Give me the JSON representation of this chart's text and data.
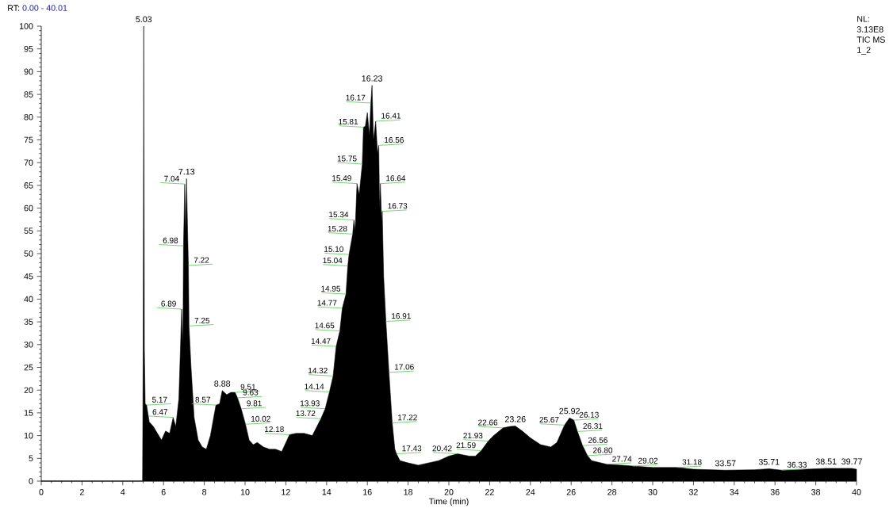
{
  "chart_data": {
    "type": "area",
    "title": "RT:",
    "subtitle": "0.00 - 40.01",
    "xlabel": "Time (min)",
    "color": "#000000",
    "xlim": [
      0,
      40
    ],
    "ylim": [
      0,
      100
    ],
    "xticks": [
      0,
      2,
      4,
      6,
      8,
      10,
      12,
      14,
      16,
      18,
      20,
      22,
      24,
      26,
      28,
      30,
      32,
      34,
      36,
      38,
      40
    ],
    "yticks": [
      0,
      5,
      10,
      15,
      20,
      25,
      30,
      35,
      40,
      45,
      50,
      55,
      60,
      65,
      70,
      75,
      80,
      85,
      90,
      95,
      100
    ],
    "x": [
      0,
      4.97,
      5.0,
      5.03,
      5.06,
      5.1,
      5.17,
      5.3,
      5.5,
      5.7,
      5.9,
      6.1,
      6.3,
      6.47,
      6.6,
      6.75,
      6.89,
      6.95,
      6.98,
      7.04,
      7.08,
      7.13,
      7.18,
      7.22,
      7.25,
      7.35,
      7.5,
      7.7,
      7.9,
      8.1,
      8.3,
      8.57,
      8.75,
      8.88,
      9.1,
      9.3,
      9.51,
      9.63,
      9.81,
      10.02,
      10.2,
      10.4,
      10.6,
      10.9,
      11.2,
      11.5,
      11.8,
      12.18,
      12.5,
      12.9,
      13.3,
      13.72,
      13.93,
      14.14,
      14.32,
      14.47,
      14.65,
      14.77,
      14.95,
      15.04,
      15.1,
      15.28,
      15.34,
      15.4,
      15.49,
      15.6,
      15.75,
      15.81,
      15.9,
      16.0,
      16.1,
      16.17,
      16.23,
      16.3,
      16.41,
      16.5,
      16.56,
      16.6,
      16.64,
      16.7,
      16.73,
      16.8,
      16.91,
      17.06,
      17.22,
      17.35,
      17.43,
      17.6,
      18,
      18.5,
      19,
      19.5,
      20,
      20.42,
      21,
      21.3,
      21.59,
      21.93,
      22.2,
      22.66,
      23,
      23.26,
      23.6,
      24,
      24.5,
      25,
      25.3,
      25.67,
      25.92,
      26.13,
      26.31,
      26.56,
      26.8,
      27,
      27.74,
      28.5,
      29.02,
      30,
      31.18,
      32,
      33.57,
      35,
      35.71,
      36.33,
      37,
      38.51,
      39.77,
      40
    ],
    "values": [
      0,
      0,
      29,
      100,
      29,
      17,
      16.7,
      13,
      12,
      10.5,
      9,
      11,
      10.5,
      14,
      12,
      18,
      37.8,
      30,
      51.7,
      65.3,
      55,
      66.5,
      55,
      47.4,
      34.1,
      25,
      14,
      9,
      7.5,
      7,
      10,
      16.7,
      17,
      19.9,
      19,
      19.5,
      19.5,
      18.3,
      15.9,
      12.5,
      9,
      8,
      8.5,
      7.5,
      7,
      7,
      6.5,
      10.2,
      10.5,
      10.5,
      10,
      13.7,
      15.9,
      19.6,
      23.1,
      29.6,
      33,
      38,
      41.1,
      47.3,
      49.8,
      54.3,
      57.4,
      55,
      65.4,
      63,
      69.7,
      77.8,
      78,
      81,
      76,
      83.1,
      87,
      75,
      79.1,
      72,
      73.8,
      60,
      65.4,
      57,
      59.3,
      45,
      35.1,
      23.9,
      12.8,
      7,
      6,
      4.5,
      4,
      3.5,
      4,
      4.5,
      5.5,
      6,
      5.5,
      5.5,
      6.7,
      8.8,
      10,
      11.7,
      12,
      12.1,
      11,
      9.5,
      8,
      7.5,
      8.5,
      12.3,
      13.9,
      13.4,
      10.9,
      7.8,
      5.6,
      4.5,
      3.7,
      3.5,
      3.3,
      3,
      3,
      2.6,
      2.4,
      2.5,
      2.7,
      2.4,
      2.5,
      2.8,
      2.8,
      2.6
    ],
    "annotations": [
      "NL:",
      "3.13E8",
      "TIC  MS",
      "1_2",
      {
        "text": "5.03",
        "x": 5.03,
        "y": 100
      },
      {
        "text": "5.17",
        "x": 5.17,
        "y": 16.7
      },
      {
        "text": "6.47",
        "x": 6.47,
        "y": 14
      },
      {
        "text": "6.89",
        "x": 6.89,
        "y": 37.8
      },
      {
        "text": "6.98",
        "x": 6.98,
        "y": 51.7
      },
      {
        "text": "7.04",
        "x": 7.04,
        "y": 65.3
      },
      {
        "text": "7.13",
        "x": 7.13,
        "y": 66.5
      },
      {
        "text": "7.22",
        "x": 7.22,
        "y": 47.4
      },
      {
        "text": "7.25",
        "x": 7.25,
        "y": 34.1
      },
      {
        "text": "8.57",
        "x": 8.57,
        "y": 16.7
      },
      {
        "text": "8.88",
        "x": 8.88,
        "y": 19.9
      },
      {
        "text": "9.51",
        "x": 9.51,
        "y": 19.5
      },
      {
        "text": "9.63",
        "x": 9.63,
        "y": 18.3
      },
      {
        "text": "9.81",
        "x": 9.81,
        "y": 15.9
      },
      {
        "text": "10.02",
        "x": 10.02,
        "y": 12.5
      },
      {
        "text": "12.18",
        "x": 12.18,
        "y": 10.2
      },
      {
        "text": "13.72",
        "x": 13.72,
        "y": 13.7
      },
      {
        "text": "13.93",
        "x": 13.93,
        "y": 15.9
      },
      {
        "text": "14.14",
        "x": 14.14,
        "y": 19.6
      },
      {
        "text": "14.32",
        "x": 14.32,
        "y": 23.1
      },
      {
        "text": "14.47",
        "x": 14.47,
        "y": 29.6
      },
      {
        "text": "14.65",
        "x": 14.65,
        "y": 33
      },
      {
        "text": "14.77",
        "x": 14.77,
        "y": 38
      },
      {
        "text": "14.95",
        "x": 14.95,
        "y": 41.1
      },
      {
        "text": "15.04",
        "x": 15.04,
        "y": 47.3
      },
      {
        "text": "15.10",
        "x": 15.1,
        "y": 49.8
      },
      {
        "text": "15.28",
        "x": 15.28,
        "y": 54.3
      },
      {
        "text": "15.34",
        "x": 15.34,
        "y": 57.4
      },
      {
        "text": "15.49",
        "x": 15.49,
        "y": 65.4
      },
      {
        "text": "15.75",
        "x": 15.75,
        "y": 69.7
      },
      {
        "text": "15.81",
        "x": 15.81,
        "y": 77.8
      },
      {
        "text": "16.17",
        "x": 16.17,
        "y": 83.1
      },
      {
        "text": "16.23",
        "x": 16.23,
        "y": 87
      },
      {
        "text": "16.41",
        "x": 16.41,
        "y": 79.1
      },
      {
        "text": "16.56",
        "x": 16.56,
        "y": 73.8
      },
      {
        "text": "16.64",
        "x": 16.64,
        "y": 65.4
      },
      {
        "text": "16.73",
        "x": 16.73,
        "y": 59.3
      },
      {
        "text": "16.91",
        "x": 16.91,
        "y": 35.1
      },
      {
        "text": "17.06",
        "x": 17.06,
        "y": 23.9
      },
      {
        "text": "17.22",
        "x": 17.22,
        "y": 12.8
      },
      {
        "text": "17.43",
        "x": 17.43,
        "y": 6
      },
      {
        "text": "20.42",
        "x": 20.42,
        "y": 6
      },
      {
        "text": "21.59",
        "x": 21.59,
        "y": 6.7
      },
      {
        "text": "21.93",
        "x": 21.93,
        "y": 8.8
      },
      {
        "text": "22.66",
        "x": 22.66,
        "y": 11.7
      },
      {
        "text": "23.26",
        "x": 23.26,
        "y": 12.1
      },
      {
        "text": "25.67",
        "x": 25.67,
        "y": 12.3
      },
      {
        "text": "25.92",
        "x": 25.92,
        "y": 13.9
      },
      {
        "text": "26.13",
        "x": 26.13,
        "y": 13.4
      },
      {
        "text": "26.31",
        "x": 26.31,
        "y": 10.9
      },
      {
        "text": "26.56",
        "x": 26.56,
        "y": 7.8
      },
      {
        "text": "26.80",
        "x": 26.8,
        "y": 5.6
      },
      {
        "text": "27.74",
        "x": 27.74,
        "y": 3.7
      },
      {
        "text": "29.02",
        "x": 29.02,
        "y": 3.3
      },
      {
        "text": "31.18",
        "x": 31.18,
        "y": 3
      },
      {
        "text": "33.57",
        "x": 33.57,
        "y": 2.4
      },
      {
        "text": "35.71",
        "x": 35.71,
        "y": 2.7
      },
      {
        "text": "36.33",
        "x": 36.33,
        "y": 2.4
      },
      {
        "text": "38.51",
        "x": 38.51,
        "y": 2.8
      },
      {
        "text": "39.77",
        "x": 39.77,
        "y": 2.8
      }
    ]
  }
}
